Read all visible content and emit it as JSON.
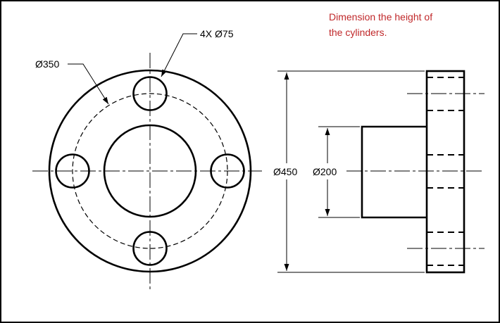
{
  "instruction": {
    "line1": "Dimension the height of",
    "line2": "the cylinders.",
    "color": "#c0282a"
  },
  "front_view": {
    "hole_callout": "4X Ø75",
    "bolt_circle_label": "Ø350"
  },
  "side_view": {
    "outer_diameter_label": "Ø450",
    "hub_diameter_label": "Ø200"
  },
  "icons": {
    "arrow": "arrowhead"
  }
}
